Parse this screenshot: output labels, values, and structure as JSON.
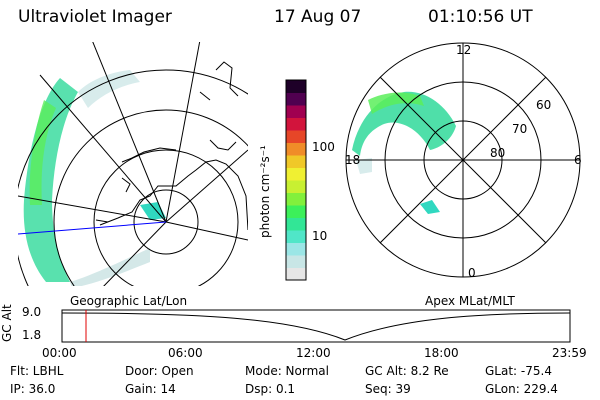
{
  "header": {
    "instrument": "Ultraviolet Imager",
    "date": "17 Aug 07",
    "time": "01:10:56 UT"
  },
  "colorbar": {
    "unit_label": "photon cm⁻²s⁻¹",
    "ticks": [
      "100",
      "10"
    ],
    "colors": [
      "#e6e6e6",
      "#c8e6e6",
      "#9be6e6",
      "#50e6c8",
      "#32e696",
      "#3cf05a",
      "#82f03c",
      "#c8f032",
      "#f0f032",
      "#f0c828",
      "#f08c28",
      "#e64628",
      "#d2143c",
      "#a00050",
      "#500050",
      "#1e0028"
    ]
  },
  "geo_panel": {
    "caption": "Geographic Lat/Lon"
  },
  "apex_panel": {
    "caption": "Apex MLat/MLT",
    "mlt_labels": {
      "top": "12",
      "left": "18",
      "right": "6",
      "bottom": "0"
    },
    "lat_labels": [
      "60",
      "70",
      "80"
    ]
  },
  "altitude_plot": {
    "ylabel": "GC Alt",
    "yticks": [
      "9.0",
      "1.8"
    ],
    "xticks": [
      "00:00",
      "06:00",
      "12:00",
      "18:00",
      "23:59"
    ],
    "marker_time": "01:10"
  },
  "info": {
    "rows": [
      [
        {
          "k": "Flt:",
          "v": "LBHL"
        },
        {
          "k": "Door:",
          "v": "Open"
        },
        {
          "k": "Mode:",
          "v": "Normal"
        },
        {
          "k": "GC Alt:",
          "v": "8.2 Re"
        },
        {
          "k": "GLat:",
          "v": "-75.4"
        }
      ],
      [
        {
          "k": "IP:",
          "v": "36.0"
        },
        {
          "k": "Gain:",
          "v": "14"
        },
        {
          "k": "Dsp:",
          "v": "0.1"
        },
        {
          "k": "Seq:",
          "v": "39"
        },
        {
          "k": "GLon:",
          "v": "229.4"
        }
      ]
    ]
  }
}
